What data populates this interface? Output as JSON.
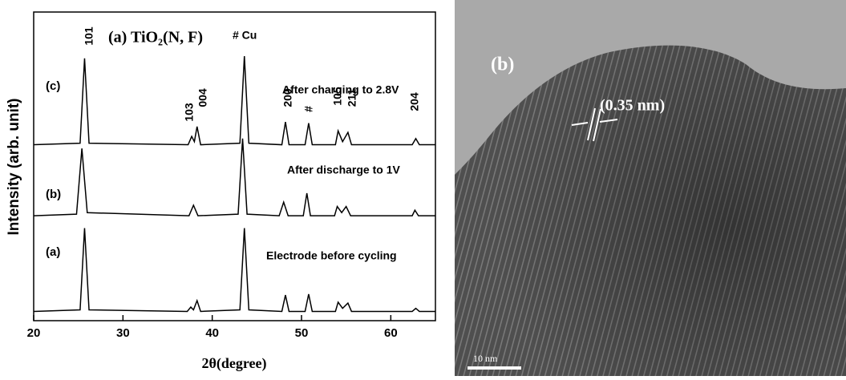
{
  "chart_data": {
    "type": "line",
    "x_label": "2θ(degree)",
    "y_label": "Intensity (arb. unit)",
    "xlim": [
      20,
      65
    ],
    "xticks": [
      20,
      30,
      40,
      50,
      60
    ],
    "ylim": [
      0,
      100
    ],
    "series": [
      {
        "name": "(c)",
        "color": "#000000",
        "x": [
          20,
          25.2,
          25.7,
          26.2,
          37.3,
          37.7,
          38.0,
          38.3,
          38.7,
          43.1,
          43.6,
          44.1,
          47.8,
          48.2,
          48.6,
          50.4,
          50.8,
          51.2,
          53.8,
          54.1,
          54.6,
          55.2,
          55.6,
          62.4,
          62.8,
          63.2,
          65
        ],
        "values": [
          57,
          57.5,
          85,
          57.5,
          57,
          59.7,
          58,
          62.9,
          57,
          57.5,
          85.7,
          57.5,
          57,
          64.4,
          57,
          57,
          64,
          57,
          57,
          61.5,
          58,
          61,
          57,
          57,
          59,
          57,
          57
        ]
      },
      {
        "name": "(b)",
        "color": "#000000",
        "x": [
          20,
          24.8,
          25.4,
          26.0,
          37.4,
          37.9,
          38.4,
          42.9,
          43.4,
          43.9,
          47.5,
          48.0,
          48.5,
          50.2,
          50.6,
          51.0,
          53.7,
          54.0,
          54.5,
          55.0,
          55.5,
          62.4,
          62.7,
          63.1,
          65
        ],
        "values": [
          34,
          34.5,
          55.8,
          35,
          34,
          37.4,
          34,
          34.5,
          59,
          34.5,
          34,
          38.4,
          34,
          34,
          41.3,
          34,
          34,
          37,
          35,
          37,
          34,
          34,
          35.8,
          34,
          34
        ]
      },
      {
        "name": "(a)",
        "color": "#000000",
        "x": [
          20,
          25.2,
          25.7,
          26.2,
          37.2,
          37.6,
          37.9,
          38.3,
          38.7,
          43.1,
          43.6,
          44.1,
          47.8,
          48.2,
          48.6,
          50.4,
          50.8,
          51.2,
          53.8,
          54.1,
          54.6,
          55.2,
          55.6,
          62.4,
          62.8,
          63.2,
          65
        ],
        "values": [
          3,
          3.5,
          30,
          3.5,
          3,
          4.4,
          3.5,
          6.5,
          3,
          3.5,
          30,
          3.5,
          3,
          8.3,
          3,
          3,
          8.6,
          3,
          3,
          6,
          4,
          5.7,
          3,
          3,
          4,
          3,
          3
        ]
      }
    ],
    "annotations": [
      "101",
      "(a) TiO₂(N, F)",
      "# Cu",
      "After charging to 2.8V",
      "103",
      "004",
      "200",
      "#",
      "105",
      "211",
      "204",
      "After discharge to 1V",
      "Electrode before cycling"
    ]
  },
  "image_annotations": {
    "panel_label": "(b)",
    "spacing": "(0.35 nm)",
    "scale_bar": "10 nm"
  }
}
